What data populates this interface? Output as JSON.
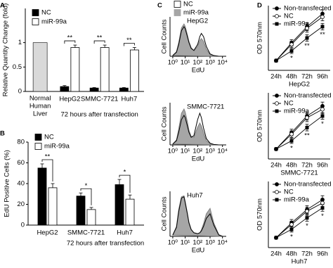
{
  "chart_data": [
    {
      "type": "bar",
      "panel": "A",
      "ylabel": "Relative Quantity Change (fold)",
      "xlabel": "72 hours after transfection",
      "categories": [
        [
          "Normal",
          "Human",
          "Liver"
        ],
        "HepG2",
        "SMMC-7721",
        "Huh7"
      ],
      "reference": {
        "values": [
          1,
          null,
          null,
          null
        ],
        "color": "#d9d9d9"
      },
      "series": [
        {
          "name": "NC",
          "color": "#000000",
          "values": [
            null,
            0.1,
            0.07,
            0.07
          ],
          "errors": [
            null,
            0.02,
            0.01,
            0.01
          ]
        },
        {
          "name": "miR-99a",
          "color": "#ffffff",
          "values": [
            null,
            0.9,
            0.9,
            0.85
          ],
          "errors": [
            null,
            0.05,
            0.05,
            0.05
          ]
        }
      ],
      "ylim": [
        0,
        1.7
      ],
      "yticks": [
        0,
        0.5,
        1
      ],
      "annotations": [
        {
          "text": "**",
          "at": 1
        },
        {
          "text": "**",
          "at": 2
        },
        {
          "text": "**",
          "at": 3
        }
      ]
    },
    {
      "type": "bar",
      "panel": "B",
      "ylabel": "EdU Positive Cells (%)",
      "xlabel": "72 hours after transfection",
      "categories": [
        "HepG2",
        "SMMC-7721",
        "Huh7"
      ],
      "series": [
        {
          "name": "NC",
          "color": "#000000",
          "values": [
            55,
            28,
            39
          ],
          "errors": [
            4,
            3,
            5
          ]
        },
        {
          "name": "miR-99a",
          "color": "#ffffff",
          "values": [
            36,
            15,
            25
          ],
          "errors": [
            4,
            2,
            4
          ]
        }
      ],
      "ylim": [
        0,
        80
      ],
      "yticks": [
        0,
        20,
        40,
        60,
        80
      ],
      "annotations": [
        {
          "text": "**",
          "at": 0
        },
        {
          "text": "*",
          "at": 1
        },
        {
          "text": "*",
          "at": 2
        }
      ]
    },
    {
      "type": "area",
      "panel": "C",
      "label": "HepG2",
      "ylabel": "Cell Counts",
      "xlabel": "EdU",
      "log_x": true,
      "x": [
        1,
        2,
        3,
        5,
        8,
        10,
        15,
        20,
        30,
        50,
        100,
        150,
        200,
        300,
        500,
        1000,
        2000,
        5000,
        10000
      ],
      "series": [
        {
          "name": "NC",
          "color": "#000000",
          "fill": "none",
          "values": [
            2,
            10,
            30,
            65,
            75,
            70,
            50,
            35,
            20,
            15,
            30,
            50,
            58,
            50,
            25,
            6,
            2,
            0,
            0
          ]
        },
        {
          "name": "miR-99a",
          "color": "#808080",
          "fill": "#a6a6a6",
          "values": [
            2,
            12,
            35,
            72,
            82,
            76,
            55,
            38,
            22,
            14,
            25,
            40,
            45,
            38,
            18,
            4,
            1,
            0,
            0
          ]
        }
      ],
      "xlim": [
        0.6,
        20000
      ],
      "ylim": [
        0,
        100
      ],
      "xticks": [
        {
          "value": 1,
          "label": "10⁰"
        },
        {
          "value": 10,
          "label": "10¹"
        },
        {
          "value": 100,
          "label": "10²"
        },
        {
          "value": 1000,
          "label": "10³"
        },
        {
          "value": 10000,
          "label": "10⁴"
        }
      ]
    },
    {
      "type": "area",
      "label": "SMMC-7721",
      "ylabel": "Cell Counts",
      "xlabel": "EdU",
      "log_x": true,
      "x": [
        1,
        2,
        3,
        5,
        8,
        10,
        15,
        20,
        30,
        50,
        100,
        150,
        200,
        300,
        500,
        1000,
        2000,
        5000,
        10000
      ],
      "series": [
        {
          "color": "#000000",
          "fill": "none",
          "values": [
            2,
            10,
            30,
            60,
            70,
            65,
            45,
            30,
            18,
            22,
            60,
            75,
            65,
            40,
            15,
            4,
            1,
            0,
            0
          ]
        },
        {
          "color": "#808080",
          "fill": "#a6a6a6",
          "values": [
            2,
            12,
            38,
            75,
            85,
            78,
            55,
            35,
            20,
            18,
            42,
            52,
            45,
            28,
            10,
            3,
            1,
            0,
            0
          ]
        }
      ],
      "xlim": [
        0.6,
        20000
      ],
      "ylim": [
        0,
        100
      ],
      "xticks": [
        {
          "value": 1,
          "label": "10⁰"
        },
        {
          "value": 10,
          "label": "10¹"
        },
        {
          "value": 100,
          "label": "10²"
        },
        {
          "value": 1000,
          "label": "10³"
        },
        {
          "value": 10000,
          "label": "10⁴"
        }
      ]
    },
    {
      "type": "area",
      "label": "Huh7",
      "ylabel": "Cell Counts",
      "xlabel": "EdU",
      "log_x": true,
      "x": [
        1,
        2,
        3,
        5,
        8,
        10,
        15,
        20,
        30,
        50,
        100,
        150,
        200,
        300,
        500,
        1000,
        2000,
        5000,
        10000
      ],
      "series": [
        {
          "color": "#000000",
          "fill": "none",
          "values": [
            3,
            20,
            55,
            85,
            88,
            75,
            50,
            30,
            15,
            8,
            6,
            8,
            12,
            22,
            40,
            50,
            25,
            3,
            0
          ]
        },
        {
          "color": "#808080",
          "fill": "#a6a6a6",
          "values": [
            3,
            22,
            60,
            88,
            90,
            78,
            52,
            32,
            16,
            8,
            6,
            8,
            14,
            28,
            50,
            62,
            30,
            4,
            0
          ]
        }
      ],
      "xlim": [
        0.6,
        20000
      ],
      "ylim": [
        0,
        100
      ],
      "xticks": [
        {
          "value": 1,
          "label": "10⁰"
        },
        {
          "value": 10,
          "label": "10¹"
        },
        {
          "value": 100,
          "label": "10²"
        },
        {
          "value": 1000,
          "label": "10³"
        },
        {
          "value": 10000,
          "label": "10⁴"
        }
      ]
    },
    {
      "type": "line",
      "panel": "D",
      "ylabel": "OD 570nm",
      "xlabel": "HepG2",
      "categories": [
        "24h",
        "48h",
        "72h",
        "96h"
      ],
      "series": [
        {
          "name": "Non-transfected",
          "color": "#000000",
          "marker": "circle",
          "values": [
            0.3,
            0.85,
            1.35,
            1.75
          ],
          "errors": [
            0.03,
            0.1,
            0.12,
            0.12
          ]
        },
        {
          "name": "NC",
          "color": "#000000",
          "marker": "circle-open",
          "values": [
            0.3,
            0.8,
            1.3,
            1.65
          ],
          "errors": [
            0.03,
            0.1,
            0.12,
            0.12
          ]
        },
        {
          "name": "miR-99a",
          "color": "#000000",
          "marker": "square",
          "values": [
            0.3,
            0.6,
            1.0,
            1.35
          ],
          "errors": [
            0.03,
            0.08,
            0.1,
            0.1
          ]
        }
      ],
      "ylim": [
        0,
        2
      ],
      "annotations": [
        {
          "text": "*",
          "series": 2,
          "at": 1
        },
        {
          "text": "**",
          "series": 2,
          "at": 2
        },
        {
          "text": "**",
          "series": 2,
          "at": 3
        }
      ]
    },
    {
      "type": "line",
      "ylabel": "OD 570nm",
      "xlabel": "SMMC-7721",
      "categories": [
        "24h",
        "48h",
        "72h",
        "96h"
      ],
      "series": [
        {
          "name": "Non-transfected",
          "color": "#000000",
          "marker": "circle",
          "values": [
            0.3,
            0.8,
            1.3,
            1.6
          ],
          "errors": [
            0.03,
            0.1,
            0.12,
            0.12
          ]
        },
        {
          "name": "NC",
          "color": "#000000",
          "marker": "circle-open",
          "values": [
            0.3,
            0.75,
            1.25,
            1.5
          ],
          "errors": [
            0.03,
            0.1,
            0.12,
            0.12
          ]
        },
        {
          "name": "miR-99a",
          "color": "#000000",
          "marker": "square",
          "values": [
            0.3,
            0.55,
            0.95,
            1.3
          ],
          "errors": [
            0.03,
            0.08,
            0.1,
            0.1
          ]
        }
      ],
      "ylim": [
        0,
        2
      ],
      "annotations": [
        {
          "text": "*",
          "series": 2,
          "at": 1
        },
        {
          "text": "**",
          "series": 2,
          "at": 2
        },
        {
          "text": "*",
          "series": 2,
          "at": 3
        }
      ]
    },
    {
      "type": "line",
      "ylabel": "OD 570nm",
      "xlabel": "Huh7",
      "categories": [
        "24h",
        "48h",
        "72h",
        "96h"
      ],
      "series": [
        {
          "name": "Non-transfected",
          "color": "#000000",
          "marker": "circle",
          "values": [
            0.3,
            0.75,
            1.15,
            1.45
          ],
          "errors": [
            0.03,
            0.1,
            0.12,
            0.12
          ]
        },
        {
          "name": "NC",
          "color": "#000000",
          "marker": "circle-open",
          "values": [
            0.3,
            0.7,
            1.1,
            1.35
          ],
          "errors": [
            0.03,
            0.1,
            0.12,
            0.12
          ]
        },
        {
          "name": "miR-99a",
          "color": "#000000",
          "marker": "square",
          "values": [
            0.3,
            0.55,
            0.9,
            1.2
          ],
          "errors": [
            0.03,
            0.08,
            0.1,
            0.1
          ]
        }
      ],
      "ylim": [
        0,
        2
      ],
      "annotations": [
        {
          "text": "*",
          "series": 2,
          "at": 1
        },
        {
          "text": "*",
          "series": 2,
          "at": 2
        },
        {
          "text": "*",
          "series": 2,
          "at": 3
        }
      ]
    }
  ]
}
